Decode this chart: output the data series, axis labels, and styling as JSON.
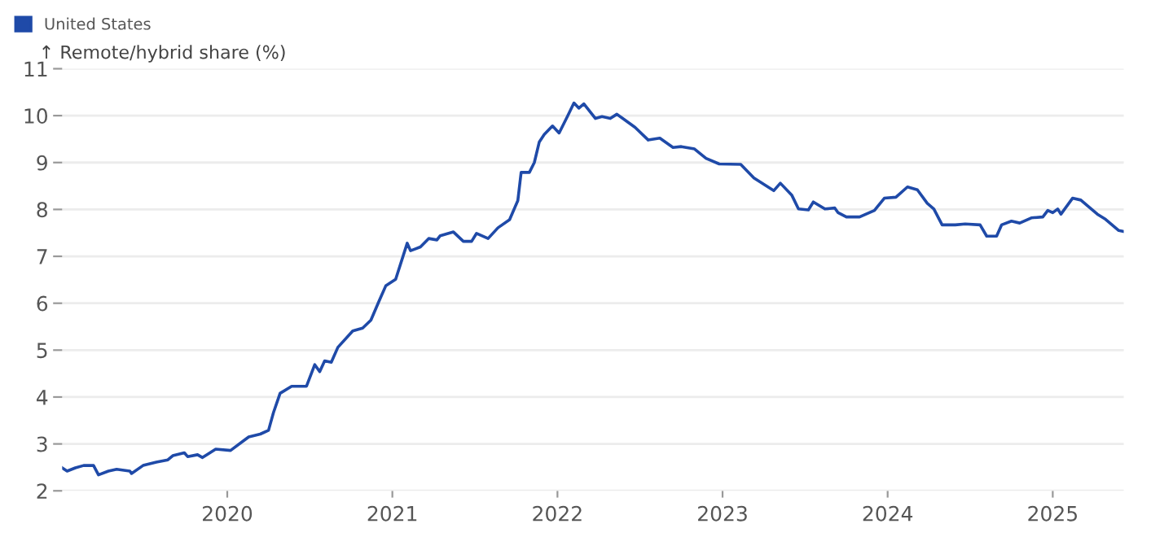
{
  "chart_data": {
    "type": "line",
    "ylabel": "↑ Remote/hybrid share (%)",
    "x": [
      2019.0,
      2019.03,
      2019.08,
      2019.13,
      2019.19,
      2019.22,
      2019.28,
      2019.33,
      2019.41,
      2019.42,
      2019.49,
      2019.57,
      2019.64,
      2019.67,
      2019.74,
      2019.76,
      2019.82,
      2019.85,
      2019.93,
      2020.02,
      2020.1,
      2020.13,
      2020.2,
      2020.25,
      2020.28,
      2020.32,
      2020.39,
      2020.48,
      2020.53,
      2020.56,
      2020.59,
      2020.63,
      2020.67,
      2020.76,
      2020.82,
      2020.87,
      2020.92,
      2020.96,
      2021.02,
      2021.09,
      2021.11,
      2021.17,
      2021.22,
      2021.27,
      2021.29,
      2021.37,
      2021.43,
      2021.48,
      2021.51,
      2021.58,
      2021.64,
      2021.71,
      2021.76,
      2021.78,
      2021.83,
      2021.86,
      2021.89,
      2021.92,
      2021.97,
      2022.01,
      2022.06,
      2022.1,
      2022.13,
      2022.16,
      2022.23,
      2022.27,
      2022.32,
      2022.36,
      2022.47,
      2022.55,
      2022.62,
      2022.7,
      2022.75,
      2022.83,
      2022.9,
      2022.98,
      2023.11,
      2023.19,
      2023.31,
      2023.35,
      2023.42,
      2023.46,
      2023.52,
      2023.55,
      2023.62,
      2023.68,
      2023.7,
      2023.75,
      2023.83,
      2023.92,
      2023.98,
      2024.05,
      2024.12,
      2024.18,
      2024.24,
      2024.28,
      2024.33,
      2024.41,
      2024.47,
      2024.56,
      2024.6,
      2024.66,
      2024.69,
      2024.75,
      2024.8,
      2024.87,
      2024.94,
      2024.97,
      2025.0,
      2025.03,
      2025.05,
      2025.12,
      2025.17,
      2025.27,
      2025.32,
      2025.4,
      2025.43
    ],
    "series": [
      {
        "name": "United States",
        "color": "#1f4aa8",
        "values": [
          2.49,
          2.42,
          2.49,
          2.54,
          2.54,
          2.34,
          2.42,
          2.46,
          2.42,
          2.37,
          2.54,
          2.61,
          2.66,
          2.75,
          2.81,
          2.73,
          2.77,
          2.71,
          2.89,
          2.86,
          3.07,
          3.15,
          3.21,
          3.29,
          3.67,
          4.08,
          4.23,
          4.23,
          4.69,
          4.54,
          4.77,
          4.74,
          5.06,
          5.41,
          5.47,
          5.64,
          6.05,
          6.37,
          6.51,
          7.28,
          7.12,
          7.2,
          7.38,
          7.35,
          7.44,
          7.52,
          7.32,
          7.32,
          7.49,
          7.38,
          7.61,
          7.78,
          8.19,
          8.79,
          8.79,
          9.0,
          9.44,
          9.6,
          9.78,
          9.63,
          9.98,
          10.27,
          10.16,
          10.25,
          9.94,
          9.98,
          9.94,
          10.03,
          9.75,
          9.48,
          9.52,
          9.32,
          9.34,
          9.29,
          9.09,
          8.97,
          8.96,
          8.67,
          8.4,
          8.56,
          8.3,
          8.01,
          7.99,
          8.16,
          8.01,
          8.03,
          7.93,
          7.84,
          7.84,
          7.98,
          8.24,
          8.26,
          8.48,
          8.42,
          8.13,
          8.01,
          7.67,
          7.67,
          7.69,
          7.67,
          7.43,
          7.43,
          7.67,
          7.75,
          7.71,
          7.82,
          7.84,
          7.98,
          7.93,
          8.01,
          7.9,
          8.24,
          8.2,
          7.9,
          7.79,
          7.55,
          7.53
        ]
      }
    ],
    "xlim": [
      2019.0,
      2025.43
    ],
    "xticks": [
      2020,
      2021,
      2022,
      2023,
      2024,
      2025
    ],
    "ylim": [
      2,
      11
    ],
    "yticks": [
      2,
      3,
      4,
      5,
      6,
      7,
      8,
      9,
      10,
      11
    ],
    "grid": "y",
    "legend": "top left",
    "marker": "none",
    "line_style": "solid"
  }
}
